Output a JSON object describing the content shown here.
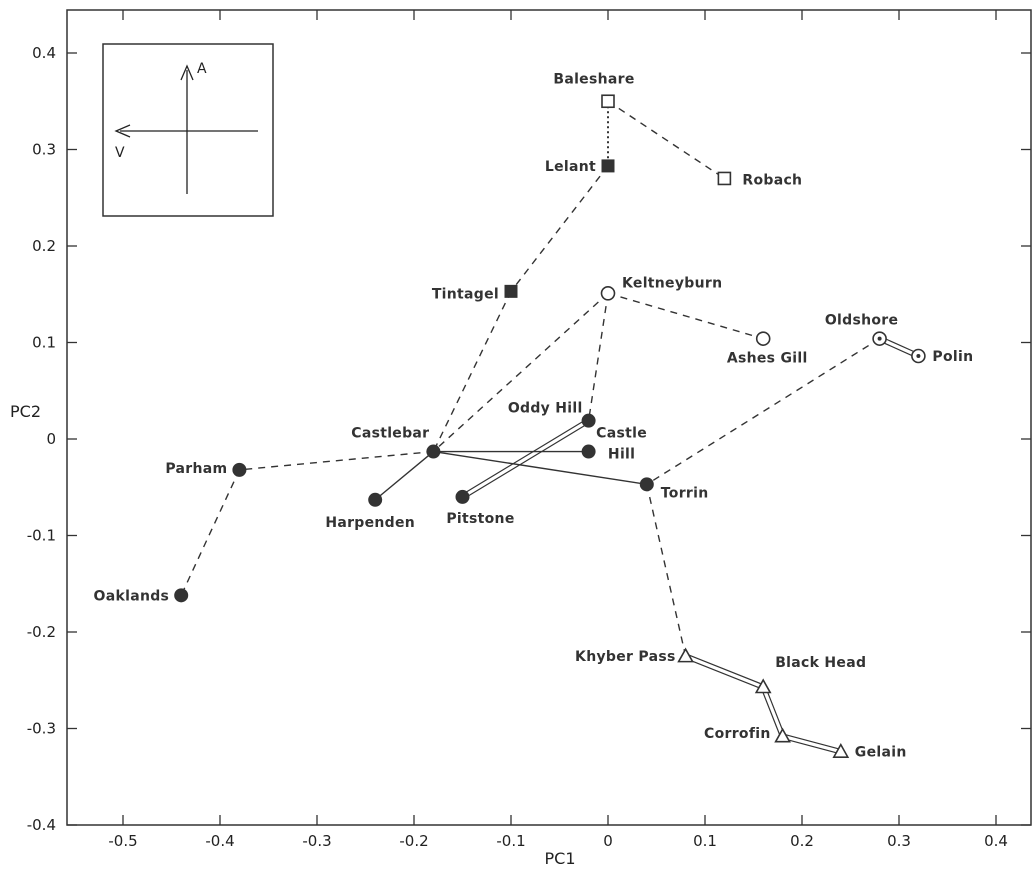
{
  "chart_data": {
    "type": "scatter",
    "xlabel": "PC1",
    "ylabel": "PC2",
    "xlim": [
      -0.57,
      0.42
    ],
    "ylim": [
      -0.4,
      0.43
    ],
    "xticks": [
      -0.5,
      -0.4,
      -0.3,
      -0.2,
      -0.1,
      0,
      0.1,
      0.2,
      0.3,
      0.4
    ],
    "yticks": [
      -0.4,
      -0.3,
      -0.2,
      -0.1,
      0,
      0.1,
      0.2,
      0.3,
      0.4
    ],
    "xtick_labels": [
      "-0.5",
      "-0.4",
      "-0.3",
      "-0.2",
      "-0.1",
      "0",
      "0.1",
      "0.2",
      "0.3",
      "0.4"
    ],
    "ytick_labels": [
      "-0.4",
      "-0.3",
      "-0.2",
      "-0.1",
      "0",
      "0.1",
      "0.2",
      "0.3",
      "0.4"
    ],
    "inset": {
      "vertical_label": "A",
      "horizontal_label": "V"
    },
    "points": [
      {
        "name": "Baleshare",
        "x": 0.0,
        "y": 0.35,
        "marker": "square-open"
      },
      {
        "name": "Robach",
        "x": 0.12,
        "y": 0.27,
        "marker": "square-open"
      },
      {
        "name": "Lelant",
        "x": 0.0,
        "y": 0.283,
        "marker": "square-filled"
      },
      {
        "name": "Tintagel",
        "x": -0.1,
        "y": 0.153,
        "marker": "square-filled"
      },
      {
        "name": "Keltneyburn",
        "x": 0.0,
        "y": 0.151,
        "marker": "circle-open"
      },
      {
        "name": "Ashes Gill",
        "x": 0.16,
        "y": 0.104,
        "marker": "circle-open"
      },
      {
        "name": "Oldshore",
        "x": 0.28,
        "y": 0.104,
        "marker": "circle-dot"
      },
      {
        "name": "Polin",
        "x": 0.32,
        "y": 0.086,
        "marker": "circle-dot"
      },
      {
        "name": "Oddy Hill",
        "x": -0.02,
        "y": 0.019,
        "marker": "circle-filled"
      },
      {
        "name": "Castlebar",
        "x": -0.18,
        "y": -0.013,
        "marker": "circle-filled"
      },
      {
        "name": "Castle Hill",
        "x": -0.02,
        "y": -0.013,
        "marker": "circle-filled"
      },
      {
        "name": "Parham",
        "x": -0.38,
        "y": -0.032,
        "marker": "circle-filled"
      },
      {
        "name": "Torrin",
        "x": 0.04,
        "y": -0.047,
        "marker": "circle-filled"
      },
      {
        "name": "Pitstone",
        "x": -0.15,
        "y": -0.06,
        "marker": "circle-filled"
      },
      {
        "name": "Harpenden",
        "x": -0.24,
        "y": -0.063,
        "marker": "circle-filled"
      },
      {
        "name": "Oaklands",
        "x": -0.44,
        "y": -0.162,
        "marker": "circle-filled"
      },
      {
        "name": "Khyber Pass",
        "x": 0.08,
        "y": -0.225,
        "marker": "triangle-open"
      },
      {
        "name": "Black Head",
        "x": 0.16,
        "y": -0.257,
        "marker": "triangle-open"
      },
      {
        "name": "Corrofin",
        "x": 0.18,
        "y": -0.308,
        "marker": "triangle-open"
      },
      {
        "name": "Gelain",
        "x": 0.24,
        "y": -0.324,
        "marker": "triangle-open"
      }
    ],
    "connections": [
      {
        "from": "Baleshare",
        "to": "Lelant",
        "style": "dotted"
      },
      {
        "from": "Baleshare",
        "to": "Robach",
        "style": "dashed"
      },
      {
        "from": "Lelant",
        "to": "Tintagel",
        "style": "dashed"
      },
      {
        "from": "Tintagel",
        "to": "Castlebar",
        "style": "dashed"
      },
      {
        "from": "Keltneyburn",
        "to": "Castlebar",
        "style": "dashed"
      },
      {
        "from": "Keltneyburn",
        "to": "Oddy Hill",
        "style": "dashed"
      },
      {
        "from": "Keltneyburn",
        "to": "Ashes Gill",
        "style": "dashed"
      },
      {
        "from": "Oldshore",
        "to": "Torrin",
        "style": "dashed"
      },
      {
        "from": "Oldshore",
        "to": "Polin",
        "style": "double"
      },
      {
        "from": "Castlebar",
        "to": "Parham",
        "style": "dashed"
      },
      {
        "from": "Parham",
        "to": "Oaklands",
        "style": "dashed"
      },
      {
        "from": "Castlebar",
        "to": "Harpenden",
        "style": "solid"
      },
      {
        "from": "Castlebar",
        "to": "Castle Hill",
        "style": "solid"
      },
      {
        "from": "Castlebar",
        "to": "Torrin",
        "style": "solid"
      },
      {
        "from": "Oddy Hill",
        "to": "Pitstone",
        "style": "double"
      },
      {
        "from": "Torrin",
        "to": "Khyber Pass",
        "style": "dashed"
      },
      {
        "from": "Khyber Pass",
        "to": "Black Head",
        "style": "double"
      },
      {
        "from": "Black Head",
        "to": "Corrofin",
        "style": "double"
      },
      {
        "from": "Corrofin",
        "to": "Gelain",
        "style": "double"
      }
    ]
  }
}
